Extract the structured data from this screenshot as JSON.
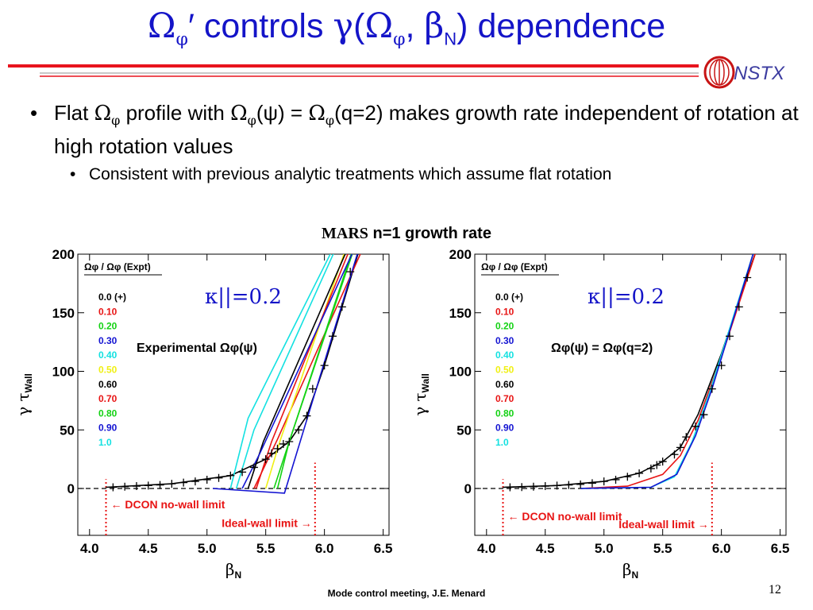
{
  "slide": {
    "title_omega": "Ω",
    "title_phi": "φ",
    "title_prime": "′",
    "title_mid": " controls ",
    "title_gamma": "γ",
    "title_paren_open": "(",
    "title_beta": "β",
    "title_N": "N",
    "title_comma": ", ",
    "title_tail": ") dependence",
    "logo_text": "NSTX",
    "bullet1_a": "Flat ",
    "bullet1_b": " profile with ",
    "bullet1_c": "(ψ) = ",
    "bullet1_d": "(q=2) makes growth rate independent of rotation at high rotation values",
    "omega": "Ω",
    "phi": "φ",
    "bullet2": "Consistent with previous analytic treatments which assume flat rotation",
    "bullet_dot": "•",
    "chart_heading_a": "MARS",
    "chart_heading_b": " n=1 growth rate",
    "footer": "Mode control meeting, J.E. Menard",
    "page_number": "12"
  },
  "colors": {
    "title": "#1414c8",
    "rule": "#e8141e",
    "rule_thin": "#909090",
    "limit": "#e81414",
    "kappa": "#1414c8",
    "legend": [
      "#000000",
      "#e81414",
      "#14d214",
      "#1414d2",
      "#14e1e1",
      "#f0f014",
      "#000000",
      "#e81414",
      "#14d214",
      "#1414d2",
      "#14e1e1"
    ]
  },
  "chart_data": [
    {
      "type": "line",
      "panel": "left",
      "xlabel": "βN",
      "ylabel": "γ τWall",
      "xlim": [
        3.9,
        6.55
      ],
      "ylim": [
        -40,
        200
      ],
      "xticks": [
        4.0,
        4.5,
        5.0,
        5.5,
        6.0,
        6.5
      ],
      "yticks": [
        0,
        50,
        100,
        150,
        200
      ],
      "legend_title": "Ωφ / Ωφ (Expt)",
      "legend_entries": [
        "0.0 (+)",
        "0.10",
        "0.20",
        "0.30",
        "0.40",
        "0.50",
        "0.60",
        "0.70",
        "0.80",
        "0.90",
        "1.0"
      ],
      "kappa_label": "κ||=0.2",
      "profile_label": "Experimental Ωφ(ψ)",
      "dcon_label": "DCON no-wall limit",
      "ideal_label": "Ideal-wall limit",
      "dcon_beta": 4.14,
      "ideal_beta": 5.92,
      "series": [
        {
          "name": "0.0 (+)",
          "points": [
            [
              4.14,
              1
            ],
            [
              4.7,
              4
            ],
            [
              5.2,
              11
            ],
            [
              5.5,
              25
            ],
            [
              5.7,
              40
            ],
            [
              5.85,
              62
            ],
            [
              6.0,
              105
            ],
            [
              6.15,
              155
            ],
            [
              6.3,
              205
            ]
          ]
        },
        {
          "name": "0.10",
          "points": [
            [
              5.4,
              0
            ],
            [
              5.6,
              42
            ],
            [
              6.35,
              210
            ]
          ]
        },
        {
          "name": "0.20",
          "points": [
            [
              5.57,
              0
            ],
            [
              5.7,
              40
            ],
            [
              6.27,
              210
            ]
          ]
        },
        {
          "name": "0.30",
          "points": [
            [
              5.05,
              0
            ],
            [
              5.66,
              -4
            ],
            [
              6.31,
              210
            ]
          ]
        },
        {
          "name": "0.40",
          "points": [
            [
              5.2,
              0
            ],
            [
              5.35,
              60
            ],
            [
              6.1,
              210
            ]
          ]
        },
        {
          "name": "0.50",
          "points": [
            [
              5.5,
              0
            ],
            [
              5.62,
              40
            ],
            [
              6.2,
              210
            ]
          ]
        },
        {
          "name": "0.60",
          "points": [
            [
              5.35,
              0
            ],
            [
              5.48,
              40
            ],
            [
              6.22,
              210
            ]
          ]
        },
        {
          "name": "0.70",
          "points": [
            [
              5.42,
              0
            ],
            [
              5.55,
              40
            ],
            [
              6.24,
              210
            ]
          ]
        },
        {
          "name": "0.80",
          "points": [
            [
              5.6,
              0
            ],
            [
              5.7,
              40
            ],
            [
              6.26,
              210
            ]
          ]
        },
        {
          "name": "0.90",
          "points": [
            [
              5.3,
              0
            ],
            [
              5.45,
              30
            ],
            [
              6.28,
              210
            ]
          ]
        },
        {
          "name": "1.0",
          "points": [
            [
              5.25,
              0
            ],
            [
              5.4,
              50
            ],
            [
              6.12,
              210
            ]
          ]
        }
      ],
      "markers_plus": [
        [
          4.2,
          1
        ],
        [
          4.3,
          1.5
        ],
        [
          4.4,
          2
        ],
        [
          4.5,
          2.5
        ],
        [
          4.6,
          3
        ],
        [
          4.7,
          4
        ],
        [
          4.8,
          5
        ],
        [
          4.9,
          6
        ],
        [
          5.0,
          7.5
        ],
        [
          5.1,
          9
        ],
        [
          5.2,
          11
        ],
        [
          5.3,
          14
        ],
        [
          5.4,
          18
        ],
        [
          5.5,
          25
        ],
        [
          5.55,
          30
        ],
        [
          5.6,
          34
        ],
        [
          5.65,
          38
        ],
        [
          5.7,
          40
        ],
        [
          5.78,
          50
        ],
        [
          5.85,
          62
        ],
        [
          5.9,
          85
        ],
        [
          6.0,
          105
        ],
        [
          6.07,
          130
        ],
        [
          6.15,
          155
        ],
        [
          6.22,
          185
        ],
        [
          6.28,
          205
        ]
      ]
    },
    {
      "type": "line",
      "panel": "right",
      "xlabel": "βN",
      "ylabel": "γ τWall",
      "xlim": [
        3.9,
        6.55
      ],
      "ylim": [
        -40,
        200
      ],
      "xticks": [
        4.0,
        4.5,
        5.0,
        5.5,
        6.0,
        6.5
      ],
      "yticks": [
        0,
        50,
        100,
        150,
        200
      ],
      "legend_title": "Ωφ / Ωφ (Expt)",
      "legend_entries": [
        "0.0 (+)",
        "0.10",
        "0.20",
        "0.30",
        "0.40",
        "0.50",
        "0.60",
        "0.70",
        "0.80",
        "0.90",
        "1.0"
      ],
      "kappa_label": "κ||=0.2",
      "profile_label": "Ωφ(ψ) = Ωφ(q=2)",
      "dcon_label": "DCON no-wall limit",
      "ideal_label": "Ideal-wall limit",
      "dcon_beta": 4.14,
      "ideal_beta": 5.92,
      "series": [
        {
          "name": "0.0 (+)",
          "points": [
            [
              4.14,
              1
            ],
            [
              4.6,
              2.5
            ],
            [
              5.0,
              6
            ],
            [
              5.3,
              13
            ],
            [
              5.5,
              23
            ],
            [
              5.65,
              35
            ],
            [
              5.8,
              63
            ],
            [
              6.0,
              115
            ],
            [
              6.2,
              175
            ],
            [
              6.32,
              210
            ]
          ]
        },
        {
          "name": "0.10",
          "points": [
            [
              4.8,
              0
            ],
            [
              5.2,
              2
            ],
            [
              5.5,
              12
            ],
            [
              5.65,
              28
            ],
            [
              5.8,
              58
            ],
            [
              6.0,
              112
            ],
            [
              6.32,
              210
            ]
          ]
        },
        {
          "name": "0.40",
          "points": [
            [
              4.8,
              0
            ],
            [
              5.4,
              1
            ],
            [
              5.6,
              10
            ],
            [
              5.75,
              40
            ],
            [
              5.9,
              82
            ],
            [
              6.3,
              210
            ]
          ]
        },
        {
          "name": "0.90",
          "points": [
            [
              4.8,
              0
            ],
            [
              5.4,
              1
            ],
            [
              5.62,
              12
            ],
            [
              5.78,
              45
            ],
            [
              5.92,
              85
            ],
            [
              6.3,
              210
            ]
          ]
        }
      ],
      "markers_plus": [
        [
          4.2,
          1
        ],
        [
          4.3,
          1.2
        ],
        [
          4.4,
          1.5
        ],
        [
          4.5,
          2
        ],
        [
          4.6,
          2.5
        ],
        [
          4.7,
          3
        ],
        [
          4.8,
          3.5
        ],
        [
          4.9,
          4.5
        ],
        [
          5.0,
          6
        ],
        [
          5.1,
          7.5
        ],
        [
          5.2,
          10
        ],
        [
          5.3,
          13
        ],
        [
          5.4,
          17
        ],
        [
          5.45,
          20
        ],
        [
          5.5,
          23
        ],
        [
          5.6,
          29
        ],
        [
          5.65,
          35
        ],
        [
          5.7,
          44
        ],
        [
          5.78,
          53
        ],
        [
          5.85,
          63
        ],
        [
          5.92,
          85
        ],
        [
          6.0,
          105
        ],
        [
          6.07,
          130
        ],
        [
          6.15,
          155
        ],
        [
          6.22,
          180
        ],
        [
          6.28,
          205
        ]
      ]
    }
  ]
}
